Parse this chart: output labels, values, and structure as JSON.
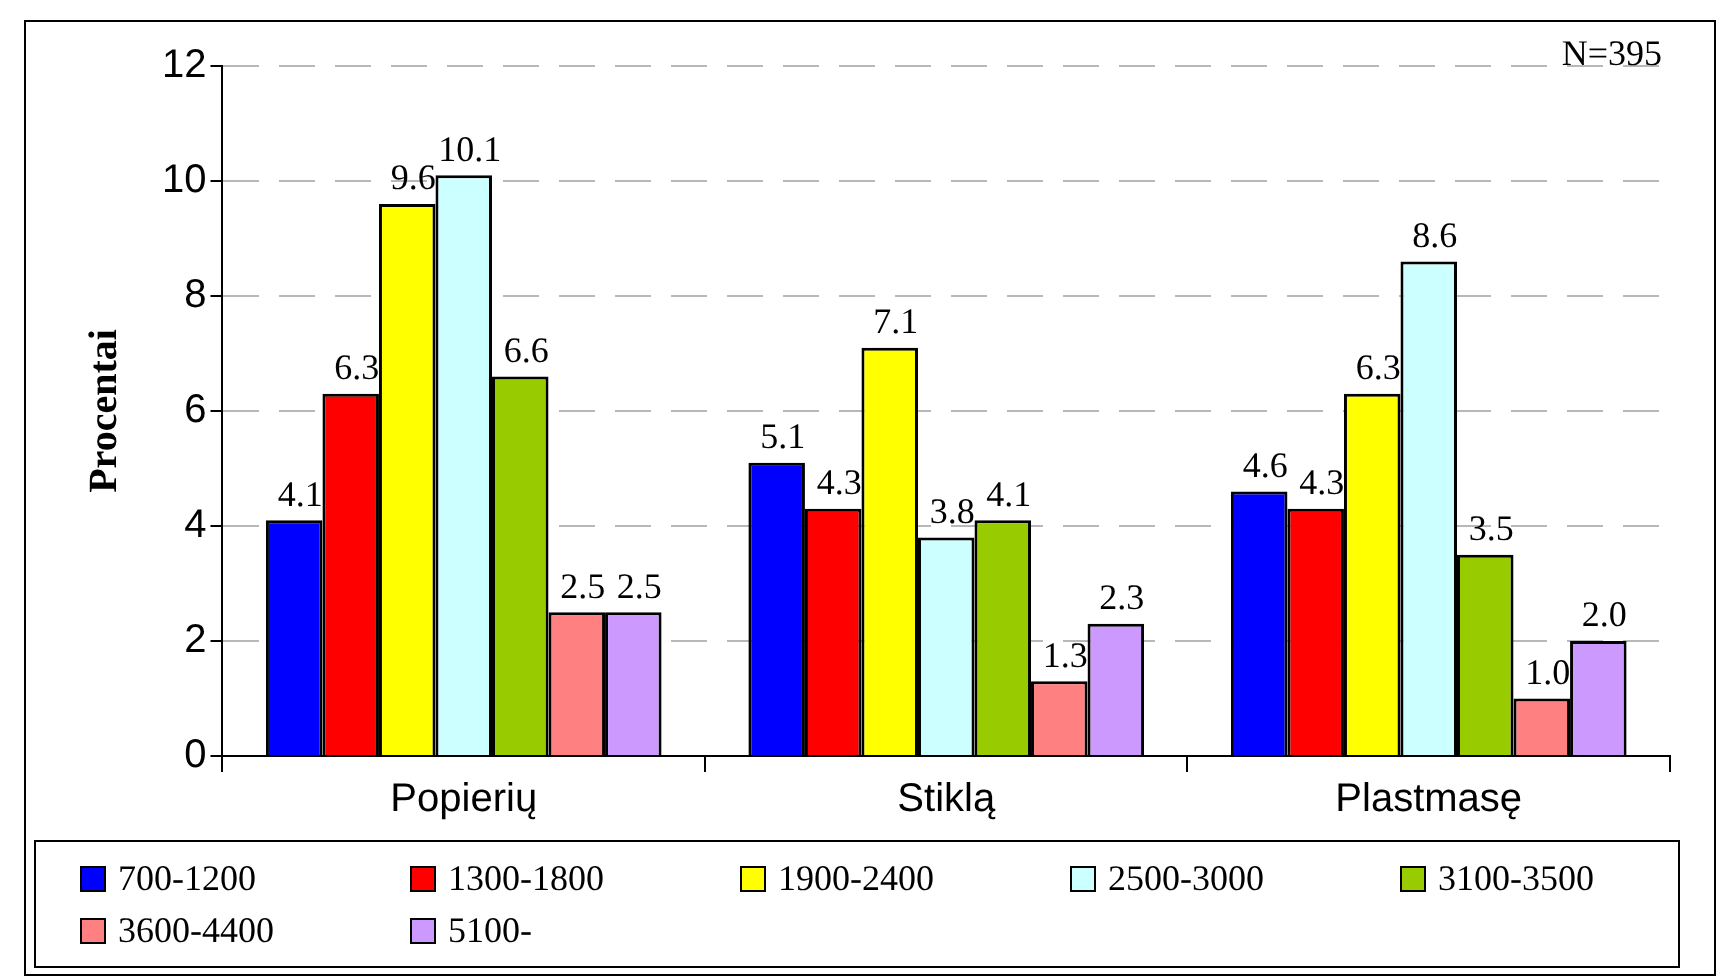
{
  "chart_data": {
    "type": "bar",
    "ylabel": "Procentai",
    "categories": [
      "Popierių",
      "Stiklą",
      "Plastmasę"
    ],
    "series": [
      {
        "name": "700-1200",
        "color": "#0000ff",
        "values": [
          4.1,
          5.1,
          4.6
        ],
        "value_labels": [
          "4.1",
          "5.1",
          "4.6"
        ]
      },
      {
        "name": "1300-1800",
        "color": "#ff0000",
        "values": [
          6.3,
          4.3,
          4.3
        ],
        "value_labels": [
          "6.3",
          "4.3",
          "4.3"
        ]
      },
      {
        "name": "1900-2400",
        "color": "#ffff00",
        "values": [
          9.6,
          7.1,
          6.3
        ],
        "value_labels": [
          "9.6",
          "7.1",
          "6.3"
        ]
      },
      {
        "name": "2500-3000",
        "color": "#ccffff",
        "values": [
          10.1,
          3.8,
          8.6
        ],
        "value_labels": [
          "10.1",
          "3.8",
          "8.6"
        ]
      },
      {
        "name": "3100-3500",
        "color": "#99cc00",
        "values": [
          6.6,
          4.1,
          3.5
        ],
        "value_labels": [
          "6.6",
          "4.1",
          "3.5"
        ]
      },
      {
        "name": "3600-4400",
        "color": "#ff8080",
        "values": [
          2.5,
          1.3,
          1.0
        ],
        "value_labels": [
          "2.5",
          "1.3",
          "1.0"
        ]
      },
      {
        "name": "5100-",
        "color": "#cc99ff",
        "values": [
          2.5,
          2.3,
          2.0
        ],
        "value_labels": [
          "2.5",
          "2.3",
          "2.0"
        ]
      }
    ],
    "ylim": [
      0,
      12
    ],
    "yticks": [
      0,
      2,
      4,
      6,
      8,
      10,
      12
    ],
    "grid": "y",
    "legend": "bottom",
    "annotations": [
      "N=395"
    ]
  }
}
